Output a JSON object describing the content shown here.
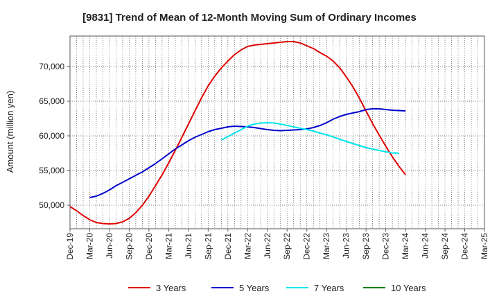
{
  "chart_data": {
    "type": "line",
    "title": "[9831]  Trend of Mean of 12-Month Moving Sum of Ordinary Incomes",
    "xlabel": "",
    "ylabel": "Amount (million yen)",
    "x_categories": [
      "Dec-19",
      "Mar-20",
      "Jun-20",
      "Sep-20",
      "Dec-20",
      "Mar-21",
      "Jun-21",
      "Sep-21",
      "Dec-21",
      "Mar-22",
      "Jun-22",
      "Sep-22",
      "Dec-22",
      "Mar-23",
      "Jun-23",
      "Sep-23",
      "Dec-23",
      "Mar-24",
      "Jun-24",
      "Sep-24",
      "Dec-24",
      "Mar-25"
    ],
    "ylim": [
      46600,
      74400
    ],
    "yticks": [
      50000,
      55000,
      60000,
      65000,
      70000
    ],
    "ytick_labels": [
      "50,000",
      "55,000",
      "60,000",
      "65,000",
      "70,000"
    ],
    "grid": true,
    "legend_position": "bottom",
    "series": [
      {
        "name": "3 Years",
        "color": "#e00000",
        "points": [
          [
            0,
            49800
          ],
          [
            0.33,
            49200
          ],
          [
            0.67,
            48500
          ],
          [
            1,
            47900
          ],
          [
            1.33,
            47500
          ],
          [
            1.67,
            47350
          ],
          [
            2,
            47300
          ],
          [
            2.33,
            47350
          ],
          [
            2.67,
            47600
          ],
          [
            3,
            48100
          ],
          [
            3.33,
            48900
          ],
          [
            3.67,
            50000
          ],
          [
            4,
            51300
          ],
          [
            4.33,
            52800
          ],
          [
            4.67,
            54400
          ],
          [
            5,
            56100
          ],
          [
            5.33,
            57900
          ],
          [
            5.67,
            59800
          ],
          [
            6,
            61700
          ],
          [
            6.33,
            63600
          ],
          [
            6.67,
            65500
          ],
          [
            7,
            67200
          ],
          [
            7.33,
            68600
          ],
          [
            7.67,
            69800
          ],
          [
            8,
            70800
          ],
          [
            8.33,
            71700
          ],
          [
            8.67,
            72400
          ],
          [
            9,
            72900
          ],
          [
            9.33,
            73100
          ],
          [
            9.67,
            73200
          ],
          [
            10,
            73300
          ],
          [
            10.33,
            73400
          ],
          [
            10.67,
            73500
          ],
          [
            11,
            73600
          ],
          [
            11.33,
            73600
          ],
          [
            11.67,
            73400
          ],
          [
            12,
            73000
          ],
          [
            12.33,
            72600
          ],
          [
            12.67,
            72000
          ],
          [
            13,
            71500
          ],
          [
            13.33,
            70800
          ],
          [
            13.67,
            69800
          ],
          [
            14,
            68500
          ],
          [
            14.33,
            67100
          ],
          [
            14.67,
            65400
          ],
          [
            15,
            63600
          ],
          [
            15.33,
            61800
          ],
          [
            15.67,
            60100
          ],
          [
            16,
            58500
          ],
          [
            16.33,
            57000
          ],
          [
            16.67,
            55600
          ],
          [
            17,
            54400
          ]
        ]
      },
      {
        "name": "5 Years",
        "color": "#0000cc",
        "points": [
          [
            1,
            51100
          ],
          [
            1.33,
            51300
          ],
          [
            1.67,
            51700
          ],
          [
            2,
            52200
          ],
          [
            2.33,
            52800
          ],
          [
            2.67,
            53300
          ],
          [
            3,
            53800
          ],
          [
            3.33,
            54300
          ],
          [
            3.67,
            54800
          ],
          [
            4,
            55400
          ],
          [
            4.33,
            56000
          ],
          [
            4.67,
            56700
          ],
          [
            5,
            57400
          ],
          [
            5.33,
            58100
          ],
          [
            5.67,
            58700
          ],
          [
            6,
            59300
          ],
          [
            6.33,
            59800
          ],
          [
            6.67,
            60200
          ],
          [
            7,
            60600
          ],
          [
            7.33,
            60900
          ],
          [
            7.67,
            61100
          ],
          [
            8,
            61300
          ],
          [
            8.33,
            61400
          ],
          [
            8.67,
            61350
          ],
          [
            9,
            61300
          ],
          [
            9.33,
            61200
          ],
          [
            9.67,
            61050
          ],
          [
            10,
            60900
          ],
          [
            10.33,
            60800
          ],
          [
            10.67,
            60750
          ],
          [
            11,
            60800
          ],
          [
            11.33,
            60850
          ],
          [
            11.67,
            60900
          ],
          [
            12,
            61000
          ],
          [
            12.33,
            61200
          ],
          [
            12.67,
            61500
          ],
          [
            13,
            61900
          ],
          [
            13.33,
            62400
          ],
          [
            13.67,
            62800
          ],
          [
            14,
            63100
          ],
          [
            14.33,
            63300
          ],
          [
            14.67,
            63500
          ],
          [
            15,
            63800
          ],
          [
            15.33,
            63900
          ],
          [
            15.67,
            63900
          ],
          [
            16,
            63800
          ],
          [
            16.33,
            63700
          ],
          [
            16.67,
            63650
          ],
          [
            17,
            63600
          ]
        ]
      },
      {
        "name": "7 Years",
        "color": "#00e5ee",
        "points": [
          [
            7.67,
            59400
          ],
          [
            8,
            59900
          ],
          [
            8.33,
            60400
          ],
          [
            8.67,
            60900
          ],
          [
            9,
            61400
          ],
          [
            9.33,
            61700
          ],
          [
            9.67,
            61850
          ],
          [
            10,
            61900
          ],
          [
            10.33,
            61850
          ],
          [
            10.67,
            61700
          ],
          [
            11,
            61500
          ],
          [
            11.33,
            61300
          ],
          [
            11.67,
            61100
          ],
          [
            12,
            60900
          ],
          [
            12.33,
            60700
          ],
          [
            12.67,
            60400
          ],
          [
            13,
            60150
          ],
          [
            13.33,
            59850
          ],
          [
            13.67,
            59500
          ],
          [
            14,
            59200
          ],
          [
            14.33,
            58900
          ],
          [
            14.67,
            58600
          ],
          [
            15,
            58300
          ],
          [
            15.33,
            58100
          ],
          [
            15.67,
            57900
          ],
          [
            16,
            57700
          ],
          [
            16.33,
            57550
          ],
          [
            16.67,
            57500
          ]
        ]
      },
      {
        "name": "10 Years",
        "color": "#008000",
        "points": []
      }
    ]
  }
}
